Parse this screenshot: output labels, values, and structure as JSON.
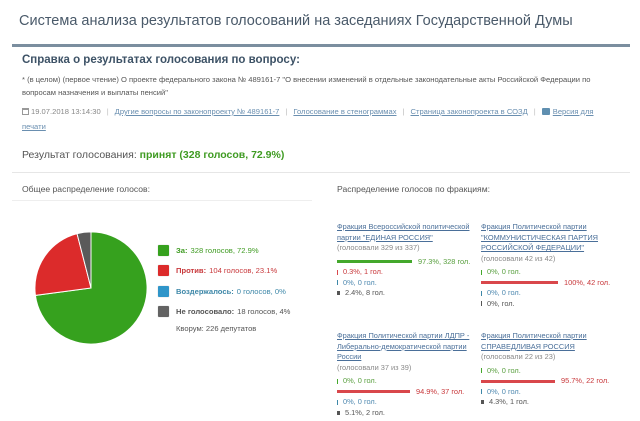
{
  "header": {
    "title": "Система анализа результатов голосований на заседаниях Государственной Думы"
  },
  "report": {
    "section_title": "Справка о результатах голосования по вопросу:",
    "question": "* (в целом) (первое чтение) О проекте федерального закона № 489161-7 \"О внесении изменений в отдельные законодательные акты Российской Федерации по вопросам назначения и выплаты пенсий\"",
    "datetime": "19.07.2018 13:14:30",
    "links": {
      "other_questions": "Другие вопросы по законопроекту № 489161-7",
      "transcripts": "Голосование в стенограммах",
      "bill_page": "Страница законопроекта в СОЗД",
      "print_version": "Версия для печати"
    },
    "result_label": "Результат голосования:",
    "result_value": "принят (328 голосов, 72.9%)"
  },
  "overall": {
    "heading": "Общее распределение голосов:",
    "legend": [
      {
        "label": "За:",
        "value": "328 голосов, 72.9%",
        "color": "#36a11e",
        "text_color": "#3f9b22"
      },
      {
        "label": "Против:",
        "value": "104 голосов, 23.1%",
        "color": "#dc2b2b",
        "text_color": "#c8383b"
      },
      {
        "label": "Воздержалось:",
        "value": "0 голосов, 0%",
        "color": "#2f95c9",
        "text_color": "#3d87a8"
      },
      {
        "label": "Не голосовало:",
        "value": "18 голосов, 4%",
        "color": "#636363",
        "text_color": "#555555"
      }
    ],
    "quorum": "Кворум: 226 депутатов"
  },
  "chart_data": {
    "type": "pie",
    "title": "Общее распределение голосов:",
    "categories": [
      "За",
      "Против",
      "Воздержалось",
      "Не голосовало"
    ],
    "values": [
      328,
      104,
      0,
      18
    ],
    "percent": [
      72.9,
      23.1,
      0,
      4
    ],
    "colors": [
      "#36a11e",
      "#dc2b2b",
      "#2f95c9",
      "#5a5a5a"
    ]
  },
  "factions": {
    "heading": "Распределение голосов по фракциям:",
    "items": [
      {
        "name": "Фракция Всероссийской политической партии \"ЕДИНАЯ РОССИЯ\"",
        "voted": "(голосовали 329 из 337)",
        "rows": [
          {
            "type": "for",
            "text": "97.3%, 328 гол.",
            "pct": 97.3
          },
          {
            "type": "against",
            "text": "0.3%, 1 гол.",
            "pct": 0.3
          },
          {
            "type": "abstain",
            "text": "0%, 0 гол.",
            "pct": 0
          },
          {
            "type": "absent",
            "text": "2.4%, 8 гол.",
            "pct": 2.4
          }
        ]
      },
      {
        "name": "Фракция Политической партии \"КОММУНИСТИЧЕСКАЯ ПАРТИЯ РОССИЙСКОЙ ФЕДЕРАЦИИ\"",
        "voted": "(голосовали 42 из 42)",
        "rows": [
          {
            "type": "for",
            "text": "0%, 0 гол.",
            "pct": 0
          },
          {
            "type": "against",
            "text": "100%, 42 гол.",
            "pct": 100
          },
          {
            "type": "abstain",
            "text": "0%, 0 гол.",
            "pct": 0
          },
          {
            "type": "absent",
            "text": "0%, гол.",
            "pct": 0
          }
        ]
      },
      {
        "name": "Фракция Политической партии ЛДПР - Либерально-демократической партии России",
        "voted": "(голосовали 37 из 39)",
        "rows": [
          {
            "type": "for",
            "text": "0%, 0 гол.",
            "pct": 0
          },
          {
            "type": "against",
            "text": "94.9%, 37 гол.",
            "pct": 94.9
          },
          {
            "type": "abstain",
            "text": "0%, 0 гол.",
            "pct": 0
          },
          {
            "type": "absent",
            "text": "5.1%, 2 гол.",
            "pct": 5.1
          }
        ]
      },
      {
        "name": "Фракция Политической партии СПРАВЕДЛИВАЯ РОССИЯ",
        "voted": "(голосовали 22 из 23)",
        "rows": [
          {
            "type": "for",
            "text": "0%, 0 гол.",
            "pct": 0
          },
          {
            "type": "against",
            "text": "95.7%, 22 гол.",
            "pct": 95.7
          },
          {
            "type": "abstain",
            "text": "0%, 0 гол.",
            "pct": 0
          },
          {
            "type": "absent",
            "text": "4.3%, 1 гол.",
            "pct": 4.3
          }
        ]
      }
    ]
  }
}
